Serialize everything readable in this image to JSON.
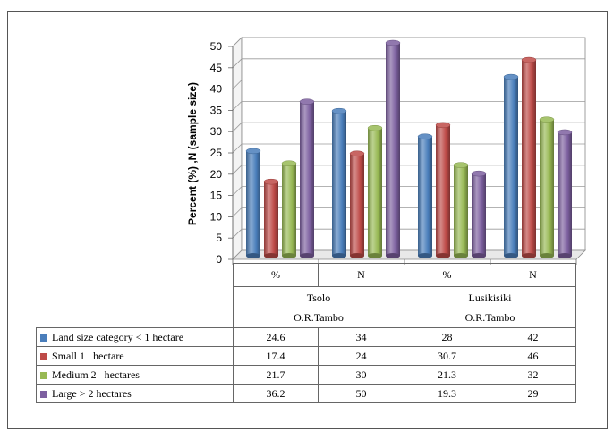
{
  "chart_data": {
    "type": "bar",
    "ylabel": "Percent (%) ,N (sample size)",
    "ylim": [
      0,
      50
    ],
    "yticks": [
      0,
      5,
      10,
      15,
      20,
      25,
      30,
      35,
      40,
      45,
      50
    ],
    "grid": true,
    "categories": [
      "%",
      "N",
      "%",
      "N"
    ],
    "groups": [
      {
        "line1": "Tsolo",
        "line2": "O.R.Tambo"
      },
      {
        "line1": "Lusikisiki",
        "line2": "O.R.Tambo"
      }
    ],
    "series": [
      {
        "name": "Land size category < 1 hectare",
        "color": "#4a7ebb",
        "values": [
          24.6,
          34,
          28,
          42
        ]
      },
      {
        "name": "Small 1   hectare",
        "color": "#be4b48",
        "values": [
          17.4,
          24,
          30.7,
          46
        ]
      },
      {
        "name": "Medium 2   hectares",
        "color": "#98b954",
        "values": [
          21.7,
          30,
          21.3,
          32
        ]
      },
      {
        "name": "Large > 2 hectares",
        "color": "#7d60a0",
        "values": [
          36.2,
          50,
          19.3,
          29
        ]
      }
    ],
    "table_values": [
      [
        "24.6",
        "34",
        "28",
        "42"
      ],
      [
        "17.4",
        "24",
        "30.7",
        "46"
      ],
      [
        "21.7",
        "30",
        "21.3",
        "32"
      ],
      [
        "36.2",
        "50",
        "19.3",
        "29"
      ]
    ]
  }
}
